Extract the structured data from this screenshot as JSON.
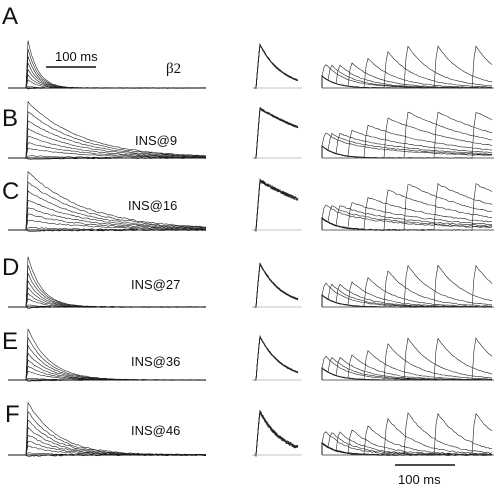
{
  "figure": {
    "rows": [
      {
        "letter": "A",
        "name": "β2"
      },
      {
        "letter": "B",
        "name": "INS@9"
      },
      {
        "letter": "C",
        "name": "INS@16"
      },
      {
        "letter": "D",
        "name": "INS@27"
      },
      {
        "letter": "E",
        "name": "INS@36"
      },
      {
        "letter": "F",
        "name": "INS@46"
      }
    ],
    "scalebar_top": "100 ms",
    "scalebar_bottom": "100 ms"
  }
}
